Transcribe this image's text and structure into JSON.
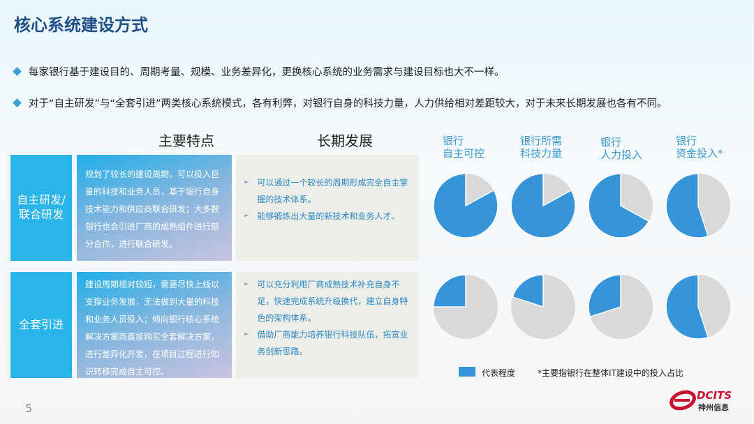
{
  "title": "核心系统建设方式",
  "bullets": [
    "每家银行基于建设目的、周期考量、规模、业务差异化，更换核心系统的业务需求与建设目标也大不一样。",
    "对于“自主研发”与“全套引进”两类核心系统模式，各有利弊，对银行自身的科技力量，人力供给相对差距较大，对于未来长期发展也各有不同。"
  ],
  "columns": {
    "features": "主要特点",
    "longterm": "长期发展"
  },
  "rows": [
    {
      "label": "自主研发/联合研发",
      "features": "规划了较长的建设周期，可以投入巨量的科技和业务人员，基于银行自身技术能力和供应商联合研发；大多数银行也会引进厂商的成熟组件进行部分合作，进行联合研发。",
      "longterm": [
        "可以通过一个较长的周期形成完全自主掌握的技术体系。",
        "能够锻炼出大量的新技术和业务人才。"
      ]
    },
    {
      "label": "全套引进",
      "features": "建设周期相对较短，需要尽快上线以支撑业务发展，无法做到大量的科技和业务人员投入；倾向银行核心系统解决方案商直接购买全套解决方案，进行差异化开发，在项目过程进行知识转移完成自主可控。",
      "longterm": [
        "可以充分利用厂商成熟技术补充自身不足，快速完成系统升级换代，建立自身特色的架构体系。",
        "借助厂商能力培养银行科技队伍，拓宽业务创新思路。"
      ]
    }
  ],
  "chart_data": {
    "type": "pie",
    "categories": [
      "银行\n自主可控",
      "银行所需\n科技力量",
      "银行\n人力投入",
      "银行\n资金投入*"
    ],
    "series": [
      {
        "row": "自主研发/联合研发",
        "values": [
          0.83,
          0.83,
          0.67,
          0.55
        ]
      },
      {
        "row": "全套引进",
        "values": [
          0.25,
          0.2,
          0.3,
          0.55
        ]
      }
    ],
    "legend": "代表程度",
    "note": "*主要指银行在整体IT建设中的投入占比",
    "colors": {
      "share": "#3595d8",
      "rest": "#d9d9d9"
    }
  },
  "page_number": "5",
  "logo": {
    "text": "DCITS",
    "subtext": "神州信息"
  },
  "colors": {
    "title": "#1e4f86",
    "label_bg": "#2ab4ea",
    "logo": "#c8102e"
  }
}
